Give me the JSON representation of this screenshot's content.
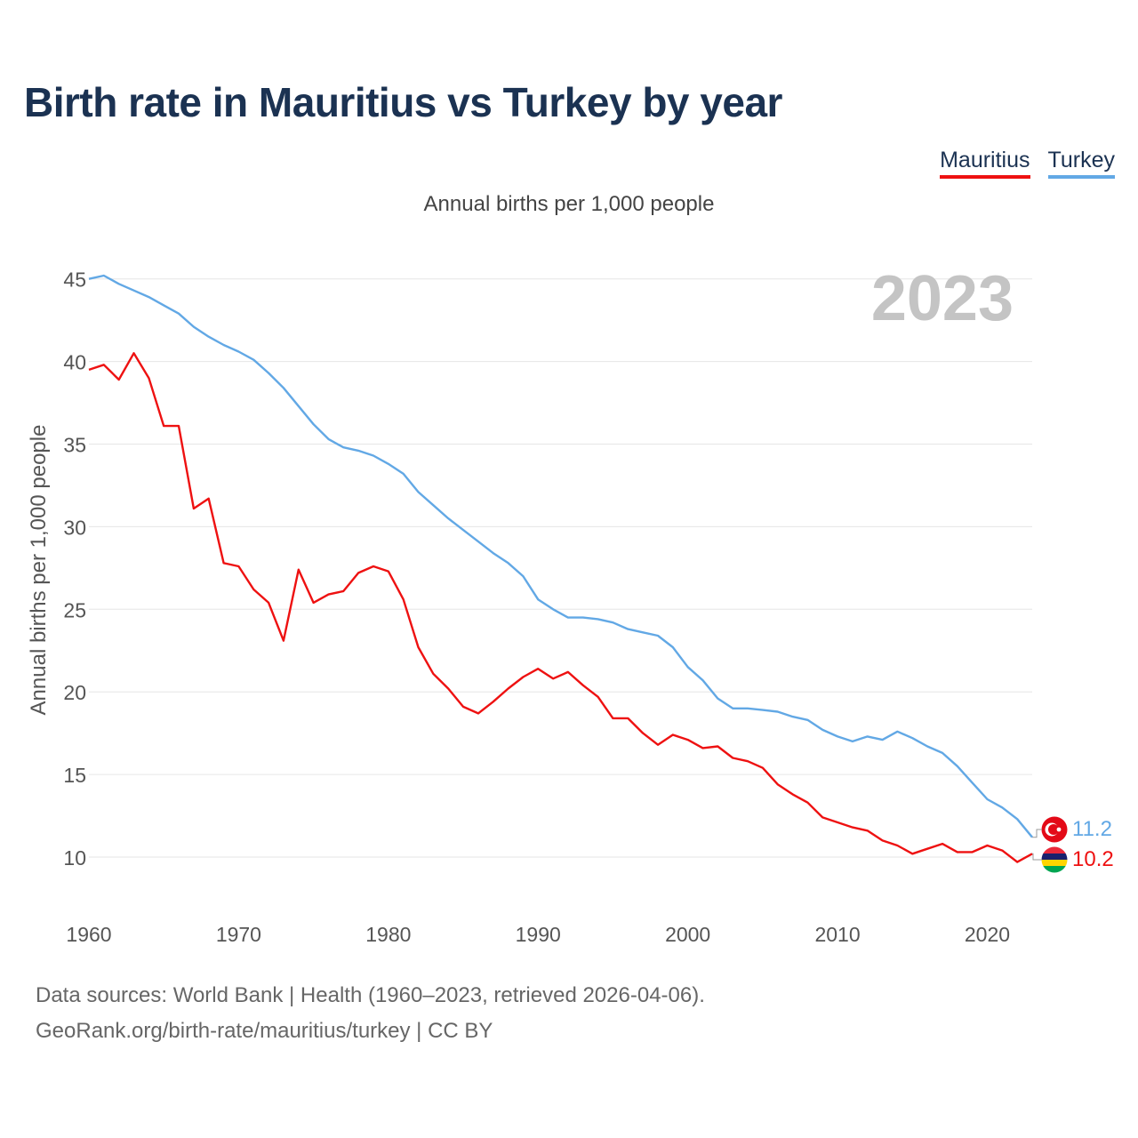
{
  "title": "Birth rate in Mauritius vs Turkey by year",
  "subtitle": "Annual births per 1,000 people",
  "legend": [
    {
      "name": "Mauritius",
      "color": "#ee1111"
    },
    {
      "name": "Turkey",
      "color": "#62a8e5"
    }
  ],
  "watermark_year": "2023",
  "end_labels": {
    "turkey": "11.2",
    "mauritius": "10.2"
  },
  "source": {
    "line1": "Data sources: World Bank | Health (1960–2023, retrieved 2026-04-06).",
    "line2": "GeoRank.org/birth-rate/mauritius/turkey | CC BY"
  },
  "chart_data": {
    "type": "line",
    "title": "Birth rate in Mauritius vs Turkey by year",
    "subtitle": "Annual births per 1,000 people",
    "xlabel": "",
    "ylabel": "Annual births per 1,000 people",
    "xlim": [
      1960,
      2023
    ],
    "ylim": [
      7,
      46
    ],
    "xticks": [
      1960,
      1970,
      1980,
      1990,
      2000,
      2010,
      2020
    ],
    "yticks": [
      10,
      15,
      20,
      25,
      30,
      35,
      40,
      45
    ],
    "grid": true,
    "legend_position": "top-right",
    "x": [
      1960,
      1961,
      1962,
      1963,
      1964,
      1965,
      1966,
      1967,
      1968,
      1969,
      1970,
      1971,
      1972,
      1973,
      1974,
      1975,
      1976,
      1977,
      1978,
      1979,
      1980,
      1981,
      1982,
      1983,
      1984,
      1985,
      1986,
      1987,
      1988,
      1989,
      1990,
      1991,
      1992,
      1993,
      1994,
      1995,
      1996,
      1997,
      1998,
      1999,
      2000,
      2001,
      2002,
      2003,
      2004,
      2005,
      2006,
      2007,
      2008,
      2009,
      2010,
      2011,
      2012,
      2013,
      2014,
      2015,
      2016,
      2017,
      2018,
      2019,
      2020,
      2021,
      2022,
      2023
    ],
    "series": [
      {
        "name": "Mauritius",
        "color": "#ee1111",
        "values": [
          39.5,
          39.8,
          38.9,
          40.5,
          39.0,
          36.1,
          36.1,
          31.1,
          31.7,
          27.8,
          27.6,
          26.2,
          25.4,
          23.1,
          27.4,
          25.4,
          25.9,
          26.1,
          27.2,
          27.6,
          27.3,
          25.6,
          22.7,
          21.1,
          20.2,
          19.1,
          18.7,
          19.4,
          20.2,
          20.9,
          21.4,
          20.8,
          21.2,
          20.4,
          19.7,
          18.4,
          18.4,
          17.5,
          16.8,
          17.4,
          17.1,
          16.6,
          16.7,
          16.0,
          15.8,
          15.4,
          14.4,
          13.8,
          13.3,
          12.4,
          12.1,
          11.8,
          11.6,
          11.0,
          10.7,
          10.2,
          10.5,
          10.8,
          10.3,
          10.3,
          10.7,
          10.4,
          9.7,
          10.2
        ]
      },
      {
        "name": "Turkey",
        "color": "#62a8e5",
        "values": [
          45.0,
          45.2,
          44.7,
          44.3,
          43.9,
          43.4,
          42.9,
          42.1,
          41.5,
          41.0,
          40.6,
          40.1,
          39.3,
          38.4,
          37.3,
          36.2,
          35.3,
          34.8,
          34.6,
          34.3,
          33.8,
          33.2,
          32.1,
          31.3,
          30.5,
          29.8,
          29.1,
          28.4,
          27.8,
          27.0,
          25.6,
          25.0,
          24.5,
          24.5,
          24.4,
          24.2,
          23.8,
          23.6,
          23.4,
          22.7,
          21.5,
          20.7,
          19.6,
          19.0,
          19.0,
          18.9,
          18.8,
          18.5,
          18.3,
          17.7,
          17.3,
          17.0,
          17.3,
          17.1,
          17.6,
          17.2,
          16.7,
          16.3,
          15.5,
          14.5,
          13.5,
          13.0,
          12.3,
          11.2
        ]
      }
    ]
  }
}
